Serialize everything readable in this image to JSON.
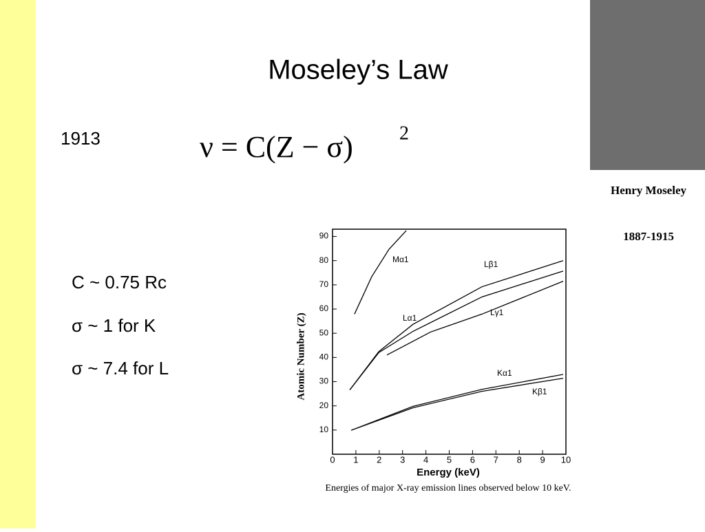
{
  "slide": {
    "title": "Moseley’s Law",
    "year": "1913",
    "formula": "ν = C(Z − σ)",
    "formula_exponent": "2",
    "bullets": [
      "C ~ 0.75 Rc",
      "σ ~ 1 for K",
      "σ ~ 7.4 for L"
    ],
    "photo_caption": {
      "name": "Henry Moseley",
      "years": "1887-1915"
    }
  },
  "chart_data": {
    "type": "line",
    "xlabel": "Energy (keV)",
    "ylabel": "Atomic Number (Z)",
    "caption": "Energies of major X-ray emission lines observed below 10 keV.",
    "xlim": [
      0,
      10
    ],
    "ylim": [
      0,
      93
    ],
    "xticks": [
      0,
      1,
      2,
      3,
      4,
      5,
      6,
      7,
      8,
      9,
      10
    ],
    "yticks": [
      10,
      20,
      30,
      40,
      50,
      60,
      70,
      80,
      90
    ],
    "series": [
      {
        "name": "Mα1",
        "color": "#000000",
        "x": [
          0.94,
          1.68,
          2.42,
          3.16
        ],
        "values": [
          57.9,
          73.4,
          84.7,
          92.4
        ]
      },
      {
        "name": "Lβ1",
        "color": "#000000",
        "x": [
          0.74,
          1.98,
          3.45,
          6.4,
          9.88
        ],
        "values": [
          26.6,
          42,
          50.8,
          65,
          75.7
        ]
      },
      {
        "name": "Lα1",
        "color": "#000000",
        "x": [
          0.74,
          1.98,
          3.45,
          6.4,
          9.88
        ],
        "values": [
          26.6,
          42.4,
          53.7,
          69.2,
          80
        ]
      },
      {
        "name": "Lγ1",
        "color": "#000000",
        "x": [
          2.33,
          4.2,
          6.4,
          9.88
        ],
        "values": [
          41,
          50.5,
          57.9,
          71.5
        ]
      },
      {
        "name": "Kα1",
        "color": "#000000",
        "x": [
          0.8,
          3.45,
          6.4,
          9.88
        ],
        "values": [
          9.9,
          19.8,
          26.8,
          33
        ]
      },
      {
        "name": "Kβ1",
        "color": "#000000",
        "x": [
          0.8,
          3.45,
          6.4,
          9.88
        ],
        "values": [
          9.9,
          19.2,
          26,
          31.4
        ]
      }
    ]
  }
}
